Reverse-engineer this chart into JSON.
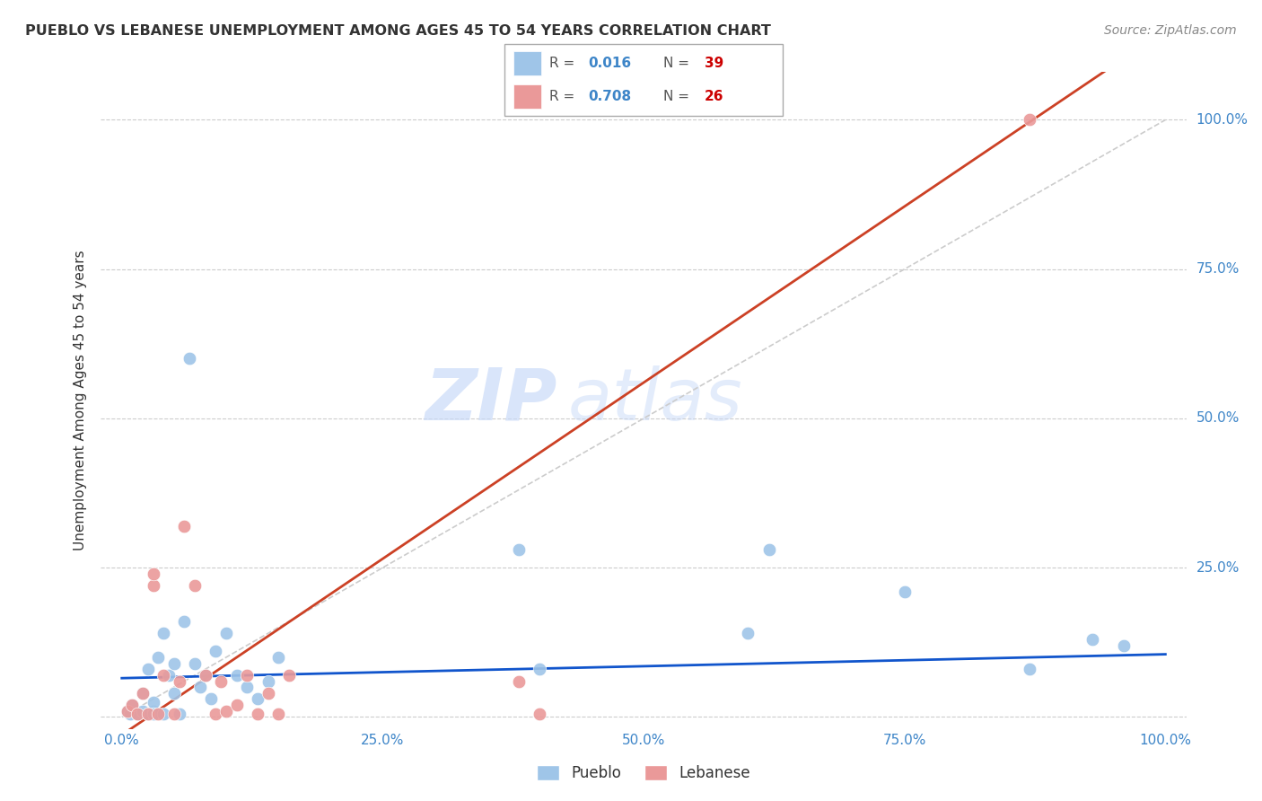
{
  "title": "PUEBLO VS LEBANESE UNEMPLOYMENT AMONG AGES 45 TO 54 YEARS CORRELATION CHART",
  "source": "Source: ZipAtlas.com",
  "ylabel": "Unemployment Among Ages 45 to 54 years",
  "xlim": [
    -0.02,
    1.02
  ],
  "ylim": [
    -0.02,
    1.08
  ],
  "xticks": [
    0.0,
    0.25,
    0.5,
    0.75,
    1.0
  ],
  "yticks": [
    0.0,
    0.25,
    0.5,
    0.75,
    1.0
  ],
  "xticklabels": [
    "0.0%",
    "25.0%",
    "50.0%",
    "75.0%",
    "100.0%"
  ],
  "yticklabels": [
    "",
    "25.0%",
    "50.0%",
    "75.0%",
    "100.0%"
  ],
  "pueblo_color": "#9fc5e8",
  "lebanese_color": "#ea9999",
  "pueblo_line_color": "#1155cc",
  "lebanese_line_color": "#cc4125",
  "diagonal_color": "#cccccc",
  "pueblo_R": "0.016",
  "pueblo_N": "39",
  "lebanese_R": "0.708",
  "lebanese_N": "26",
  "watermark_zip": "ZIP",
  "watermark_atlas": "atlas",
  "pueblo_x": [
    0.005,
    0.008,
    0.01,
    0.015,
    0.02,
    0.02,
    0.025,
    0.025,
    0.03,
    0.03,
    0.03,
    0.035,
    0.04,
    0.04,
    0.045,
    0.05,
    0.05,
    0.055,
    0.06,
    0.065,
    0.07,
    0.075,
    0.08,
    0.085,
    0.09,
    0.1,
    0.11,
    0.12,
    0.13,
    0.14,
    0.15,
    0.38,
    0.4,
    0.6,
    0.62,
    0.75,
    0.87,
    0.93,
    0.96
  ],
  "pueblo_y": [
    0.01,
    0.005,
    0.02,
    0.005,
    0.01,
    0.04,
    0.005,
    0.08,
    0.01,
    0.025,
    0.005,
    0.1,
    0.14,
    0.005,
    0.07,
    0.09,
    0.04,
    0.005,
    0.16,
    0.6,
    0.09,
    0.05,
    0.07,
    0.03,
    0.11,
    0.14,
    0.07,
    0.05,
    0.03,
    0.06,
    0.1,
    0.28,
    0.08,
    0.14,
    0.28,
    0.21,
    0.08,
    0.13,
    0.12
  ],
  "lebanese_x": [
    0.005,
    0.01,
    0.015,
    0.02,
    0.025,
    0.03,
    0.03,
    0.035,
    0.04,
    0.05,
    0.055,
    0.06,
    0.07,
    0.08,
    0.09,
    0.095,
    0.1,
    0.11,
    0.12,
    0.13,
    0.14,
    0.15,
    0.16,
    0.38,
    0.4,
    0.87
  ],
  "lebanese_y": [
    0.01,
    0.02,
    0.005,
    0.04,
    0.005,
    0.22,
    0.24,
    0.005,
    0.07,
    0.005,
    0.06,
    0.32,
    0.22,
    0.07,
    0.005,
    0.06,
    0.01,
    0.02,
    0.07,
    0.005,
    0.04,
    0.005,
    0.07,
    0.06,
    0.005,
    1.0
  ],
  "pueblo_line_slope": 0.04,
  "pueblo_line_intercept": 0.065,
  "lebanese_line_slope": 1.18,
  "lebanese_line_intercept": -0.03
}
